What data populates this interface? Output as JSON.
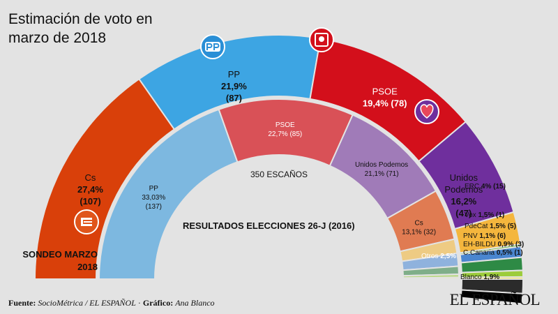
{
  "title": "Estimación de voto en marzo de 2018",
  "center_label": "350 ESCAÑOS",
  "sondeo_label": "SONDEO MARZO 2018",
  "resultados_label": "RESULTADOS ELECCIONES 26-J (2016)",
  "footer": {
    "fuente_label": "Fuente:",
    "fuente_value": "SocioMétrica / EL ESPAÑOL",
    "separator": "·",
    "grafico_label": "Gráfico:",
    "grafico_value": "Ana Blanco"
  },
  "brand": "EL ESPAÑOL",
  "icons": [
    "cs-logo-icon",
    "pp-logo-icon",
    "psoe-logo-icon",
    "podemos-logo-icon"
  ],
  "chart_data": [
    {
      "type": "half-donut",
      "name": "SONDEO MARZO 2018",
      "total_seats": 350,
      "series": [
        {
          "party": "Cs",
          "percent": "27,4%",
          "seats": "(107)",
          "value": 107,
          "color": "#d9400a"
        },
        {
          "party": "PP",
          "percent": "21,9%",
          "seats": "(87)",
          "value": 87,
          "color": "#3da5e3"
        },
        {
          "party": "PSOE",
          "percent": "19,4%",
          "seats": "(78)",
          "value": 78,
          "color": "#d30f1b"
        },
        {
          "party": "Unidos Podemos",
          "percent": "16,2%",
          "seats": "(47)",
          "value": 47,
          "color": "#6f2f9d"
        },
        {
          "party": "ERC",
          "percent": "4%",
          "seats": "(15)",
          "value": 15,
          "color": "#f4b63d"
        },
        {
          "party": "Vox",
          "percent": "1,5%",
          "seats": "(1)",
          "value": 1,
          "color": "#6dbb3a"
        },
        {
          "party": "PdeCat",
          "percent": "1,5%",
          "seats": "(5)",
          "value": 5,
          "color": "#4a86d0"
        },
        {
          "party": "PNV",
          "percent": "1,1%",
          "seats": "(6)",
          "value": 6,
          "color": "#2e8a45"
        },
        {
          "party": "EH-BILDU",
          "percent": "0,9%",
          "seats": "(3)",
          "value": 3,
          "color": "#9ccc3b"
        },
        {
          "party": "C.Canaria",
          "percent": "0,5%",
          "seats": "(1)",
          "value": 1,
          "color": "#f4e04d"
        },
        {
          "party": "Otros",
          "percent": "2,5%",
          "seats": "",
          "value": 0,
          "color": "#2b2b2b"
        },
        {
          "party": "Blanco",
          "percent": "1,9%",
          "seats": "",
          "value": 0,
          "color": "#000000"
        }
      ]
    },
    {
      "type": "half-donut",
      "name": "RESULTADOS ELECCIONES 26-J (2016)",
      "total_seats": 350,
      "series": [
        {
          "party": "PP",
          "percent": "33,03%",
          "seats": "(137)",
          "value": 137,
          "color": "#7db8e0"
        },
        {
          "party": "PSOE",
          "percent": "22,7%",
          "seats": "(85)",
          "value": 85,
          "color": "#d95157"
        },
        {
          "party": "Unidos Podemos",
          "percent": "21,1%",
          "seats": "(71)",
          "value": 71,
          "color": "#a07bb8"
        },
        {
          "party": "Cs",
          "percent": "13,1%",
          "seats": "(32)",
          "value": 32,
          "color": "#e07b52"
        },
        {
          "party": "ERC",
          "percent": "",
          "seats": "",
          "value": 9,
          "color": "#eecb83"
        },
        {
          "party": "PdeCat",
          "percent": "",
          "seats": "",
          "value": 8,
          "color": "#8fb2dd"
        },
        {
          "party": "PNV",
          "percent": "",
          "seats": "",
          "value": 5,
          "color": "#7fae89"
        },
        {
          "party": "EH-BILDU",
          "percent": "",
          "seats": "",
          "value": 2,
          "color": "#bcd98a"
        },
        {
          "party": "C.Canaria",
          "percent": "",
          "seats": "",
          "value": 1,
          "color": "#f1e89a"
        }
      ]
    }
  ]
}
